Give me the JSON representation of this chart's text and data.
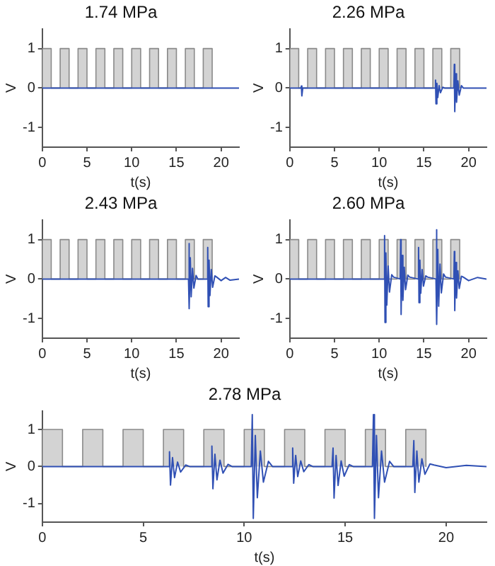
{
  "chart_data": [
    {
      "type": "line",
      "title": "1.74 MPa",
      "xlabel": "t(s)",
      "ylabel": "V",
      "xlim": [
        0,
        22
      ],
      "xticks": [
        0,
        5,
        10,
        15,
        20
      ],
      "ylim": [
        -1.5,
        1.5
      ],
      "yticks": [
        -1,
        0,
        1
      ],
      "marker": "none",
      "series": [
        {
          "type": "area",
          "color": "#d3d3d3",
          "x": [
            0,
            0,
            1,
            1,
            2,
            2,
            3,
            3,
            4,
            4,
            5,
            5,
            6,
            6,
            7,
            7,
            8,
            8,
            9,
            9,
            10,
            10,
            11,
            11,
            12,
            12,
            13,
            13,
            14,
            14,
            15,
            15,
            16,
            16,
            17,
            17,
            18,
            18,
            19,
            19
          ],
          "values": [
            0,
            1,
            1,
            0,
            0,
            1,
            1,
            0,
            0,
            1,
            1,
            0,
            0,
            1,
            1,
            0,
            0,
            1,
            1,
            0,
            0,
            1,
            1,
            0,
            0,
            1,
            1,
            0,
            0,
            1,
            1,
            0,
            0,
            1,
            1,
            0,
            0,
            1,
            1,
            0
          ]
        },
        {
          "type": "line",
          "color": "#3050b4",
          "x": [
            0,
            22
          ],
          "values": [
            0,
            0
          ]
        }
      ]
    },
    {
      "type": "line",
      "title": "2.26 MPa",
      "xlabel": "t(s)",
      "ylabel": "V",
      "xlim": [
        0,
        22
      ],
      "xticks": [
        0,
        5,
        10,
        15,
        20
      ],
      "ylim": [
        -1.5,
        1.5
      ],
      "yticks": [
        -1,
        0,
        1
      ],
      "marker": "none",
      "series": [
        {
          "type": "area",
          "color": "#d3d3d3",
          "x": [
            0,
            0,
            1,
            1,
            2,
            2,
            3,
            3,
            4,
            4,
            5,
            5,
            6,
            6,
            7,
            7,
            8,
            8,
            9,
            9,
            10,
            10,
            11,
            11,
            12,
            12,
            13,
            13,
            14,
            14,
            15,
            15,
            16,
            16,
            17,
            17,
            18,
            18,
            19,
            19
          ],
          "values": [
            0,
            1,
            1,
            0,
            0,
            1,
            1,
            0,
            0,
            1,
            1,
            0,
            0,
            1,
            1,
            0,
            0,
            1,
            1,
            0,
            0,
            1,
            1,
            0,
            0,
            1,
            1,
            0,
            0,
            1,
            1,
            0,
            0,
            1,
            1,
            0,
            0,
            1,
            1,
            0
          ]
        },
        {
          "type": "line",
          "color": "#3050b4",
          "x": [
            0,
            1.25,
            1.3,
            1.35,
            1.45,
            16.25,
            16.3,
            16.35,
            16.45,
            16.55,
            16.7,
            16.85,
            17.1,
            17.3,
            18.35,
            18.4,
            18.45,
            18.55,
            18.65,
            18.8,
            18.95,
            19.2,
            19.4,
            22
          ],
          "values": [
            0,
            0,
            0.05,
            -0.2,
            0,
            0,
            0.2,
            -0.4,
            0.12,
            -0.24,
            0.06,
            -0.12,
            0.02,
            0,
            0,
            0.6,
            -0.6,
            0.36,
            -0.36,
            0.18,
            -0.18,
            0.06,
            0,
            0
          ]
        }
      ]
    },
    {
      "type": "line",
      "title": "2.43 MPa",
      "xlabel": "t(s)",
      "ylabel": "V",
      "xlim": [
        0,
        22
      ],
      "xticks": [
        0,
        5,
        10,
        15,
        20
      ],
      "ylim": [
        -1.5,
        1.5
      ],
      "yticks": [
        -1,
        0,
        1
      ],
      "marker": "none",
      "series": [
        {
          "type": "area",
          "color": "#d3d3d3",
          "x": [
            0,
            0,
            1,
            1,
            2,
            2,
            3,
            3,
            4,
            4,
            5,
            5,
            6,
            6,
            7,
            7,
            8,
            8,
            9,
            9,
            10,
            10,
            11,
            11,
            12,
            12,
            13,
            13,
            14,
            14,
            15,
            15,
            16,
            16,
            17,
            17,
            18,
            18,
            19,
            19
          ],
          "values": [
            0,
            1,
            1,
            0,
            0,
            1,
            1,
            0,
            0,
            1,
            1,
            0,
            0,
            1,
            1,
            0,
            0,
            1,
            1,
            0,
            0,
            1,
            1,
            0,
            0,
            1,
            1,
            0,
            0,
            1,
            1,
            0,
            0,
            1,
            1,
            0,
            0,
            1,
            1,
            0
          ]
        },
        {
          "type": "line",
          "color": "#3050b4",
          "x": [
            0,
            16.35,
            16.4,
            16.45,
            16.55,
            16.65,
            16.8,
            16.95,
            17.2,
            17.4,
            18.45,
            18.5,
            18.55,
            18.65,
            18.75,
            18.9,
            19.05,
            19.3,
            19.5,
            20,
            20.5,
            21,
            22
          ],
          "values": [
            0,
            0,
            0.9,
            -0.75,
            0.54,
            -0.45,
            0.27,
            -0.23,
            0.09,
            0,
            0,
            0.8,
            -0.7,
            0.48,
            -0.42,
            0.24,
            -0.21,
            0.08,
            0.05,
            -0.04,
            0.04,
            -0.03,
            0
          ]
        }
      ]
    },
    {
      "type": "line",
      "title": "2.60 MPa",
      "xlabel": "t(s)",
      "ylabel": "V",
      "xlim": [
        0,
        22
      ],
      "xticks": [
        0,
        5,
        10,
        15,
        20
      ],
      "ylim": [
        -1.5,
        1.5
      ],
      "yticks": [
        -1,
        0,
        1
      ],
      "marker": "none",
      "series": [
        {
          "type": "area",
          "color": "#d3d3d3",
          "x": [
            0,
            0,
            1,
            1,
            2,
            2,
            3,
            3,
            4,
            4,
            5,
            5,
            6,
            6,
            7,
            7,
            8,
            8,
            9,
            9,
            10,
            10,
            11,
            11,
            12,
            12,
            13,
            13,
            14,
            14,
            15,
            15,
            16,
            16,
            17,
            17,
            18,
            18,
            19,
            19
          ],
          "values": [
            0,
            1,
            1,
            0,
            0,
            1,
            1,
            0,
            0,
            1,
            1,
            0,
            0,
            1,
            1,
            0,
            0,
            1,
            1,
            0,
            0,
            1,
            1,
            0,
            0,
            1,
            1,
            0,
            0,
            1,
            1,
            0,
            0,
            1,
            1,
            0,
            0,
            1,
            1,
            0
          ]
        },
        {
          "type": "line",
          "color": "#3050b4",
          "x": [
            0,
            10.55,
            10.6,
            10.65,
            10.75,
            10.85,
            11,
            11.15,
            11.4,
            11.6,
            12.35,
            12.4,
            12.45,
            12.55,
            12.65,
            12.8,
            12.95,
            13.2,
            13.4,
            14.35,
            14.4,
            14.45,
            14.55,
            14.65,
            14.8,
            14.95,
            15.2,
            15.4,
            16.35,
            16.4,
            16.45,
            16.55,
            16.65,
            16.8,
            16.95,
            17.2,
            17.4,
            18.35,
            18.4,
            18.45,
            18.55,
            18.65,
            18.8,
            18.95,
            19.2,
            19.4,
            20,
            21,
            22
          ],
          "values": [
            0,
            0,
            1.1,
            -1.1,
            0.66,
            -0.66,
            0.33,
            -0.33,
            0.11,
            0.05,
            0,
            1,
            -0.9,
            0.6,
            -0.54,
            0.3,
            -0.27,
            0.1,
            0.05,
            0,
            0.8,
            -0.6,
            0.48,
            -0.36,
            0.24,
            -0.18,
            0.08,
            0.05,
            0,
            1.25,
            -1.15,
            0.75,
            -0.69,
            0.38,
            -0.35,
            0.13,
            0.05,
            0,
            0.7,
            -0.8,
            0.42,
            -0.48,
            0.21,
            -0.24,
            0.07,
            0.05,
            -0.04,
            0.04,
            0
          ]
        }
      ]
    },
    {
      "type": "line",
      "title": "2.78 MPa",
      "xlabel": "t(s)",
      "ylabel": "V",
      "xlim": [
        0,
        22
      ],
      "xticks": [
        0,
        5,
        10,
        15,
        20
      ],
      "ylim": [
        -1.5,
        1.5
      ],
      "yticks": [
        -1,
        0,
        1
      ],
      "marker": "none",
      "series": [
        {
          "type": "area",
          "color": "#d3d3d3",
          "x": [
            0,
            0,
            1,
            1,
            2,
            2,
            3,
            3,
            4,
            4,
            5,
            5,
            6,
            6,
            7,
            7,
            8,
            8,
            9,
            9,
            10,
            10,
            11,
            11,
            12,
            12,
            13,
            13,
            14,
            14,
            15,
            15,
            16,
            16,
            17,
            17,
            18,
            18,
            19,
            19
          ],
          "values": [
            0,
            1,
            1,
            0,
            0,
            1,
            1,
            0,
            0,
            1,
            1,
            0,
            0,
            1,
            1,
            0,
            0,
            1,
            1,
            0,
            0,
            1,
            1,
            0,
            0,
            1,
            1,
            0,
            0,
            1,
            1,
            0,
            0,
            1,
            1,
            0,
            0,
            1,
            1,
            0
          ]
        },
        {
          "type": "line",
          "color": "#3050b4",
          "x": [
            0,
            6.25,
            6.3,
            6.35,
            6.45,
            6.55,
            6.7,
            6.85,
            7.1,
            7.3,
            8.35,
            8.4,
            8.45,
            8.55,
            8.65,
            8.8,
            8.95,
            9.2,
            9.4,
            10.35,
            10.4,
            10.45,
            10.55,
            10.65,
            10.8,
            10.95,
            11.2,
            11.4,
            12.35,
            12.4,
            12.45,
            12.55,
            12.65,
            12.8,
            12.95,
            13.2,
            13.4,
            14.35,
            14.4,
            14.45,
            14.55,
            14.65,
            14.8,
            14.95,
            15.2,
            15.4,
            16.35,
            16.4,
            16.45,
            16.55,
            16.65,
            16.8,
            16.95,
            17.2,
            17.4,
            18.35,
            18.4,
            18.45,
            18.55,
            18.65,
            18.8,
            18.95,
            19.2,
            19.4,
            20,
            21,
            22
          ],
          "values": [
            0,
            0,
            0.4,
            -0.5,
            0.24,
            -0.3,
            0.12,
            -0.15,
            0.04,
            0,
            0,
            0.55,
            -0.6,
            0.33,
            -0.36,
            0.17,
            -0.18,
            0.06,
            0,
            0,
            1.4,
            -1.4,
            0.84,
            -0.84,
            0.42,
            -0.42,
            0.14,
            0,
            0,
            0.5,
            -0.45,
            0.3,
            -0.27,
            0.15,
            -0.14,
            0.05,
            0,
            0,
            0.5,
            -0.85,
            0.3,
            -0.51,
            0.15,
            -0.26,
            0.05,
            0,
            0,
            1.4,
            -1.4,
            0.84,
            -0.84,
            0.42,
            -0.42,
            0.14,
            0,
            0,
            0.7,
            -0.7,
            0.42,
            -0.42,
            0.21,
            -0.21,
            0.07,
            0.04,
            -0.03,
            0.03,
            0
          ]
        }
      ]
    }
  ]
}
